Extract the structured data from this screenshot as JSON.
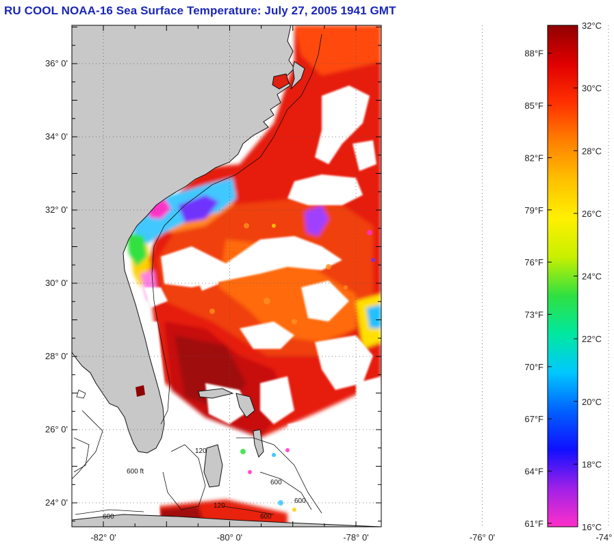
{
  "title": "RU COOL  NOAA-16  Sea Surface Temperature:  July 27, 2005 1941 GMT",
  "map": {
    "lat_ticks": [
      {
        "label": "36° 0'",
        "value": 36
      },
      {
        "label": "34° 0'",
        "value": 34
      },
      {
        "label": "32° 0'",
        "value": 32
      },
      {
        "label": "30° 0'",
        "value": 30
      },
      {
        "label": "28° 0'",
        "value": 28
      },
      {
        "label": "26° 0'",
        "value": 26
      },
      {
        "label": "24° 0'",
        "value": 24
      }
    ],
    "lon_ticks": [
      {
        "label": "-82° 0'",
        "value": -82
      },
      {
        "label": "-80° 0'",
        "value": -80
      },
      {
        "label": "-78° 0'",
        "value": -78
      },
      {
        "label": "-76° 0'",
        "value": -76
      },
      {
        "label": "-74° 0'",
        "value": -74
      }
    ],
    "contour_labels": [
      "120",
      "600 ft",
      "600",
      "120",
      "600",
      "600",
      "600"
    ],
    "land_color": "#c8c8c8",
    "cloud_color": "#ffffff"
  },
  "colorbar": {
    "celsius": [
      "32°C",
      "30°C",
      "28°C",
      "26°C",
      "24°C",
      "22°C",
      "20°C",
      "18°C",
      "16°C"
    ],
    "fahrenheit": [
      "88°F",
      "85°F",
      "82°F",
      "79°F",
      "76°F",
      "73°F",
      "70°F",
      "67°F",
      "64°F",
      "61°F"
    ],
    "min_c": 16,
    "max_c": 32,
    "colors": [
      "#ff30c8",
      "#a020e8",
      "#1010ff",
      "#0060ff",
      "#00c8ff",
      "#00e8a0",
      "#30e040",
      "#c8f000",
      "#fff000",
      "#ffc000",
      "#ff8000",
      "#ff3000",
      "#e00000",
      "#900000"
    ]
  }
}
